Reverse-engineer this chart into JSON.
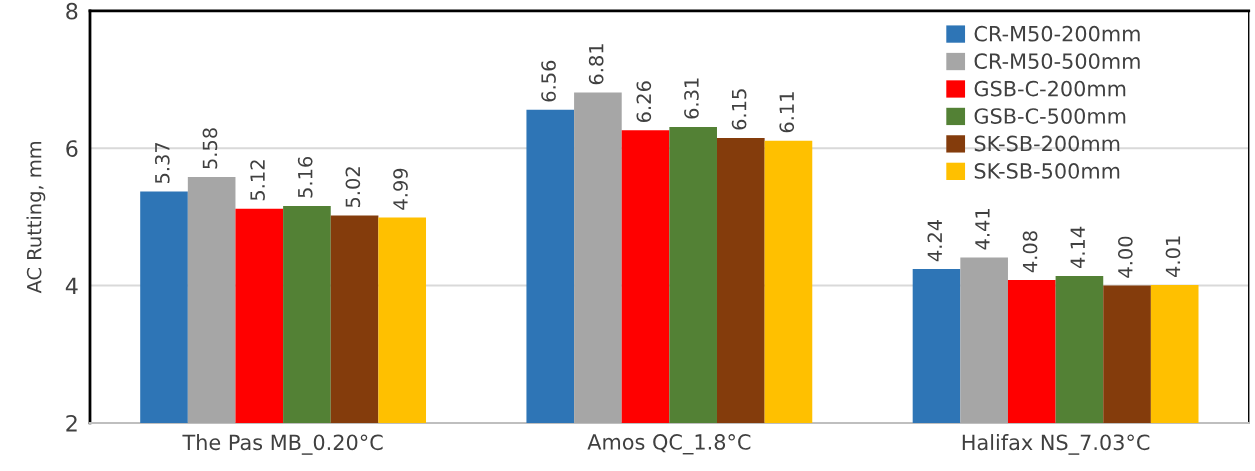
{
  "chart_data": {
    "type": "bar",
    "ylabel": "AC Rutting, mm",
    "categories": [
      "The Pas MB_0.20°C",
      "Amos QC_1.8°C",
      "Halifax NS_7.03°C"
    ],
    "series": [
      {
        "name": "CR-M50-200mm",
        "color": "#2e75b6",
        "values": [
          5.37,
          6.56,
          4.24
        ]
      },
      {
        "name": "CR-M50-500mm",
        "color": "#a6a6a6",
        "values": [
          5.58,
          6.81,
          4.41
        ]
      },
      {
        "name": "GSB-C-200mm",
        "color": "#ff0000",
        "values": [
          5.12,
          6.26,
          4.08
        ]
      },
      {
        "name": "GSB-C-500mm",
        "color": "#538135",
        "values": [
          5.16,
          6.31,
          4.14
        ]
      },
      {
        "name": "SK-SB-200mm",
        "color": "#843c0c",
        "values": [
          5.02,
          6.15,
          4.0
        ]
      },
      {
        "name": "SK-SB-500mm",
        "color": "#ffc000",
        "values": [
          4.99,
          6.11,
          4.01
        ]
      }
    ],
    "ylim": [
      2,
      8
    ],
    "yticks": [
      2,
      4,
      6,
      8
    ],
    "grid": "y",
    "legend": "top right",
    "value_labels": [
      [
        "5.37",
        "6.56",
        "4.24"
      ],
      [
        "5.58",
        "6.81",
        "4.41"
      ],
      [
        "5.12",
        "6.26",
        "4.08"
      ],
      [
        "5.16",
        "6.31",
        "4.14"
      ],
      [
        "5.02",
        "6.15",
        "4.00"
      ],
      [
        "4.99",
        "6.11",
        "4.01"
      ]
    ]
  }
}
